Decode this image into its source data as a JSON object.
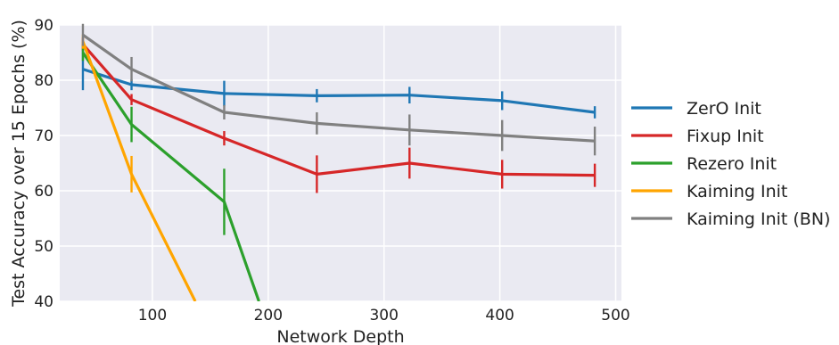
{
  "chart_data": {
    "type": "line",
    "title": "",
    "xlabel": "Network Depth",
    "ylabel": "Test Accuracy over 15 Epochs (%)",
    "xlim": [
      20,
      505
    ],
    "ylim": [
      40,
      90
    ],
    "xticks": [
      100,
      200,
      300,
      400,
      500
    ],
    "yticks": [
      40,
      50,
      60,
      70,
      80,
      90
    ],
    "grid": true,
    "legend_position": "right",
    "series": [
      {
        "name": "ZerO Init",
        "color": "#1f77b4",
        "x": [
          40,
          82,
          162,
          242,
          322,
          402,
          482
        ],
        "y": [
          82,
          79.2,
          77.6,
          77.2,
          77.3,
          76.3,
          74.2
        ],
        "err": [
          3.8,
          1.0,
          2.3,
          1.2,
          1.5,
          1.7,
          1.1
        ]
      },
      {
        "name": "Fixup Init",
        "color": "#d62728",
        "x": [
          40,
          82,
          162,
          242,
          322,
          402,
          482
        ],
        "y": [
          86.5,
          76.5,
          69.5,
          63.0,
          65.0,
          63.0,
          62.8
        ],
        "err": [
          1.2,
          1.0,
          1.3,
          3.4,
          2.8,
          2.6,
          2.1
        ]
      },
      {
        "name": "Rezero Init",
        "color": "#2ca02c",
        "x": [
          40,
          82,
          162,
          192
        ],
        "y": [
          85.0,
          72.0,
          58.0,
          40.0
        ],
        "err": [
          1.5,
          3.2,
          6.0,
          0
        ]
      },
      {
        "name": "Kaiming Init",
        "color": "#ffa500",
        "x": [
          40,
          82,
          137
        ],
        "y": [
          87.0,
          63.0,
          40.0
        ],
        "err": [
          1.3,
          3.3,
          0
        ]
      },
      {
        "name": "Kaiming Init (BN)",
        "color": "#808080",
        "x": [
          40,
          82,
          162,
          242,
          322,
          402,
          482
        ],
        "y": [
          88.2,
          82.0,
          74.2,
          72.2,
          71.0,
          70.0,
          69.0
        ],
        "err": [
          2.0,
          2.2,
          1.3,
          2.0,
          2.8,
          2.8,
          2.6
        ]
      }
    ]
  }
}
